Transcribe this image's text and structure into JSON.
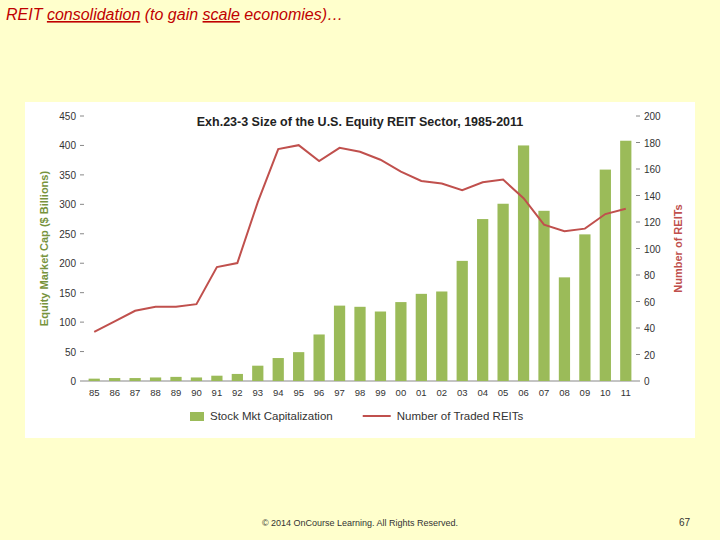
{
  "slide": {
    "heading": [
      {
        "text": "REIT ",
        "underline": false
      },
      {
        "text": "consolidation",
        "underline": true
      },
      {
        "text": " (to gain ",
        "underline": false
      },
      {
        "text": "scale",
        "underline": true
      },
      {
        "text": " economies)…",
        "underline": false
      }
    ],
    "footer": "© 2014 OnCourse Learning. All Rights Reserved.",
    "page_number": 67
  },
  "chart_data": {
    "type": "bar",
    "title": "Exh.23-3 Size of the U.S. Equity REIT Sector, 1985-2011",
    "y_label": "Equity Market Cap ($ Billions)",
    "y2_label": "Number of REITs",
    "categories": [
      "85",
      "86",
      "87",
      "88",
      "89",
      "90",
      "91",
      "92",
      "93",
      "94",
      "95",
      "96",
      "97",
      "98",
      "99",
      "00",
      "01",
      "02",
      "03",
      "04",
      "05",
      "06",
      "07",
      "08",
      "09",
      "10",
      "11"
    ],
    "series": [
      {
        "name": "Stock Mkt Capitalization",
        "type": "bar",
        "color": "#9bbb59",
        "values": [
          4,
          5,
          5,
          6,
          7,
          6,
          9,
          12,
          26,
          39,
          49,
          79,
          128,
          126,
          118,
          134,
          148,
          152,
          204,
          275,
          301,
          400,
          289,
          176,
          249,
          359,
          408
        ]
      },
      {
        "name": "Number of Traded REITs",
        "type": "line",
        "color": "#c0504d",
        "axis": "y2",
        "values": [
          37,
          45,
          53,
          56,
          56,
          58,
          86,
          89,
          135,
          175,
          178,
          166,
          176,
          173,
          167,
          158,
          151,
          149,
          144,
          150,
          152,
          138,
          118,
          113,
          115,
          126,
          130
        ]
      }
    ],
    "ylim": [
      0,
      450
    ],
    "yticks": [
      0,
      50,
      100,
      150,
      200,
      250,
      300,
      350,
      400,
      450
    ],
    "y2lim": [
      0,
      200
    ],
    "y2ticks": [
      0,
      20,
      40,
      60,
      80,
      100,
      120,
      140,
      160,
      180,
      200
    ],
    "grid": false,
    "legend": "bottom"
  }
}
